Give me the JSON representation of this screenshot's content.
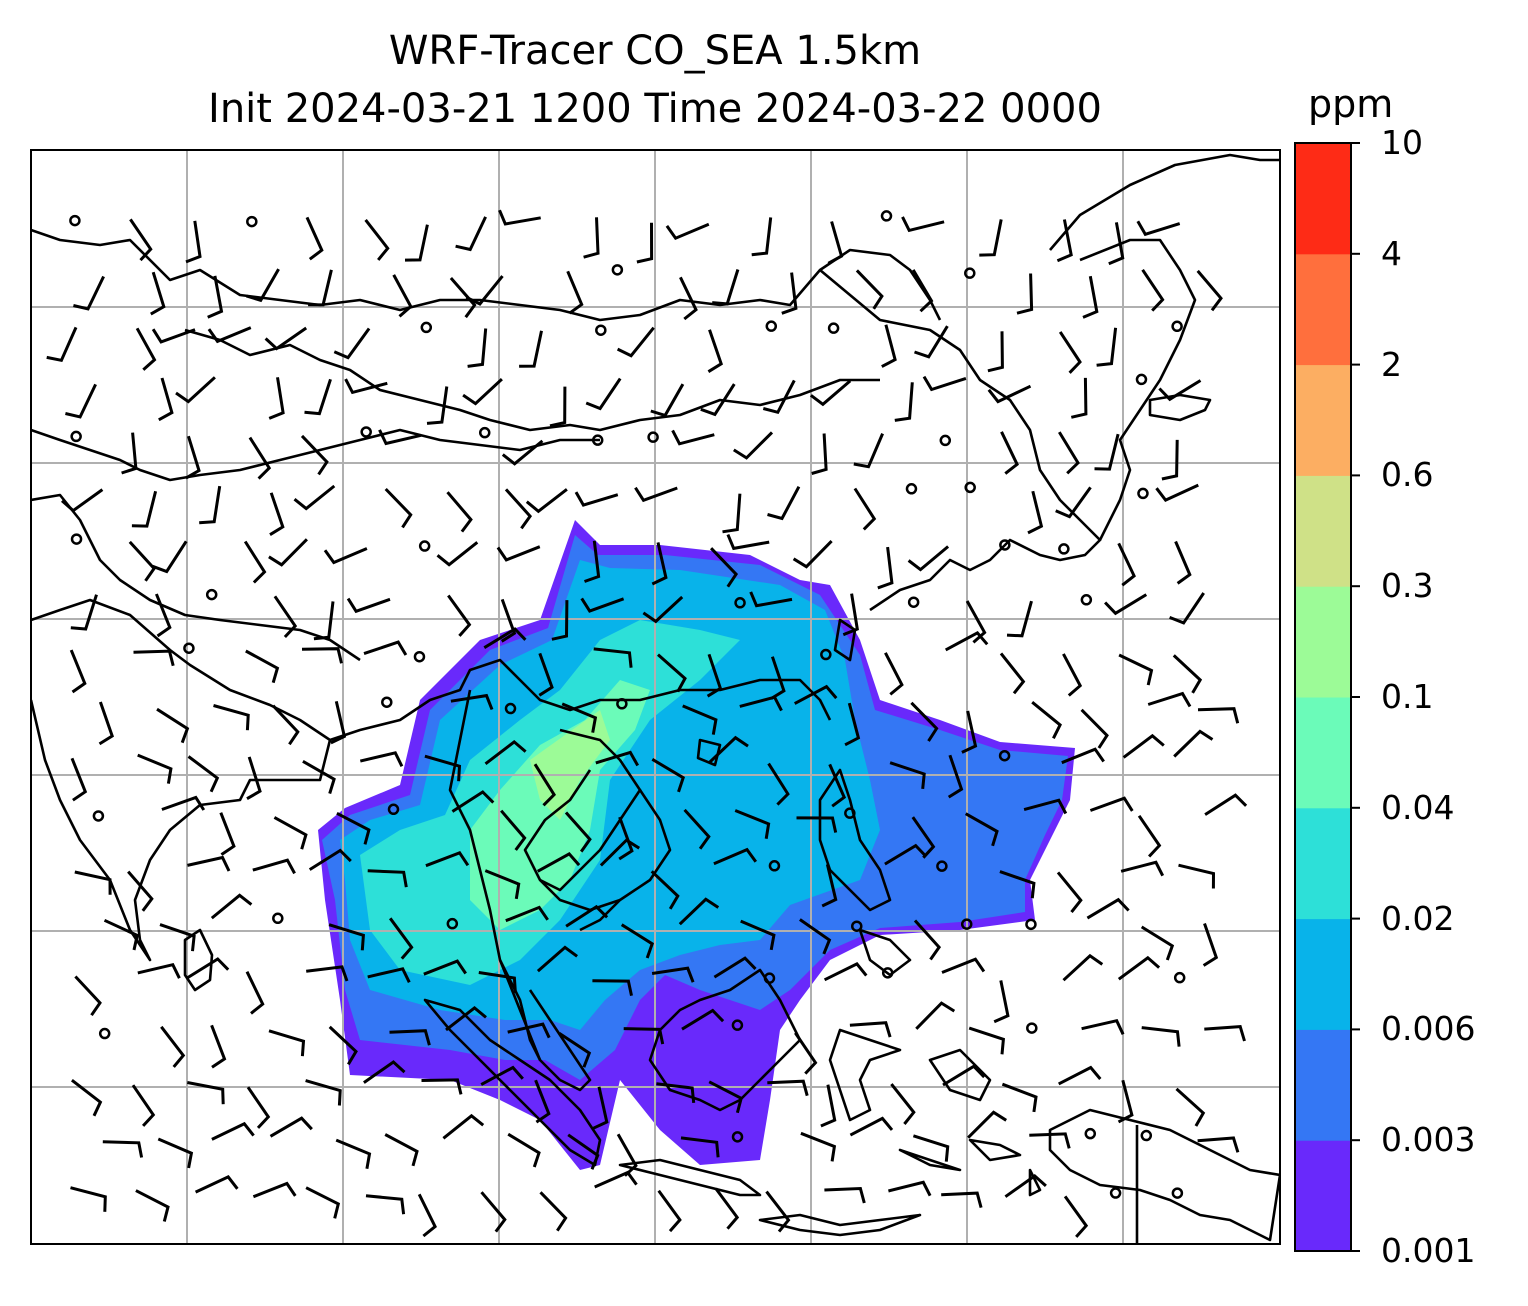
{
  "title": {
    "line1": "WRF-Tracer CO_SEA 1.5km",
    "line2": "Init 2024-03-21 1200 Time 2024-03-22 0000"
  },
  "colorbar": {
    "unit": "ppm",
    "levels": [
      "0.001",
      "0.003",
      "0.006",
      "0.02",
      "0.04",
      "0.1",
      "0.3",
      "0.6",
      "2",
      "4",
      "10"
    ],
    "colors": [
      "#6929fb",
      "#3477f4",
      "#08b3ea",
      "#2de0d8",
      "#6bfbb9",
      "#9cfb97",
      "#cfe187",
      "#fcae62",
      "#ff6f3d",
      "#fe2b16"
    ]
  },
  "map": {
    "gridline_color": "#b0b0b0",
    "coastline_color": "#000000",
    "wind_barb_color": "#000000"
  }
}
